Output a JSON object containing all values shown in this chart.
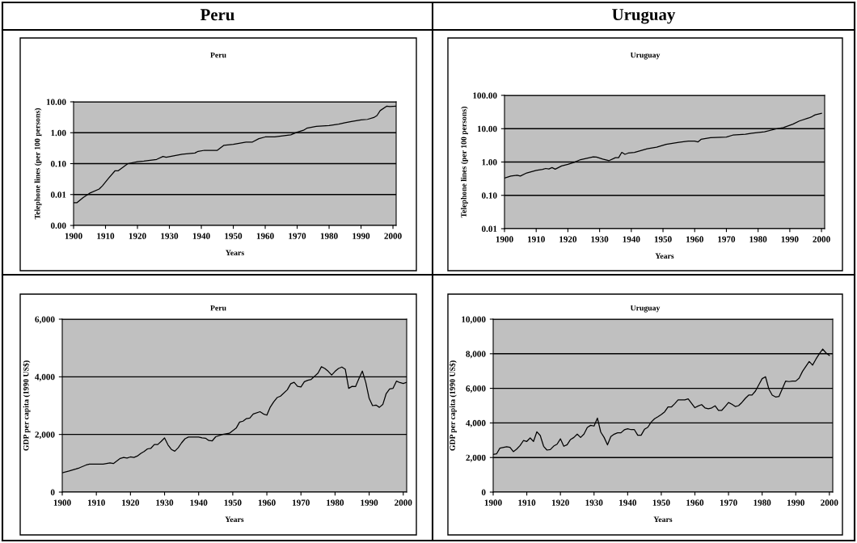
{
  "chart_data": [
    {
      "type": "line",
      "title": "Peru",
      "xlabel": "Years",
      "ylabel": "Telephone lines (per 100 persons)",
      "annotations": [
        "Peru"
      ],
      "log": true,
      "grid": "y",
      "legend": false,
      "xlim": [
        1900,
        2001
      ],
      "xticks": [
        1900,
        1910,
        1920,
        1930,
        1940,
        1950,
        1960,
        1970,
        1980,
        1990,
        2000
      ],
      "ylim": [
        0.001,
        10
      ],
      "yticks": [
        {
          "value": 0.001,
          "label": "0.00"
        },
        {
          "value": 0.01,
          "label": "0.01"
        },
        {
          "value": 0.1,
          "label": "0.10"
        },
        {
          "value": 1,
          "label": "1.00"
        },
        {
          "value": 10,
          "label": "10.00"
        }
      ],
      "x": [
        1900,
        1901,
        1903,
        1905,
        1908,
        1909,
        1911,
        1913,
        1914,
        1917,
        1920,
        1922,
        1926,
        1928,
        1929,
        1934,
        1938,
        1939,
        1941,
        1945,
        1947,
        1950,
        1954,
        1956,
        1958,
        1960,
        1963,
        1965,
        1968,
        1970,
        1972,
        1973,
        1976,
        1980,
        1983,
        1985,
        1987,
        1990,
        1992,
        1994,
        1995,
        1996,
        1998,
        1999,
        2001
      ],
      "series": [
        {
          "color": "#000000",
          "values": [
            0.0054,
            0.0054,
            0.008,
            0.011,
            0.015,
            0.019,
            0.034,
            0.059,
            0.059,
            0.1,
            0.115,
            0.12,
            0.137,
            0.17,
            0.16,
            0.2,
            0.22,
            0.25,
            0.27,
            0.27,
            0.39,
            0.42,
            0.5,
            0.5,
            0.64,
            0.73,
            0.73,
            0.78,
            0.85,
            1.04,
            1.2,
            1.4,
            1.6,
            1.7,
            1.9,
            2.1,
            2.3,
            2.6,
            2.7,
            3.1,
            3.6,
            5.2,
            7.2,
            7.0,
            7.2
          ]
        }
      ]
    },
    {
      "type": "line",
      "title": "Uruguay",
      "xlabel": "Years",
      "ylabel": "Telephone lines (per 100 persons)",
      "annotations": [
        "Uruguay"
      ],
      "log": true,
      "grid": "y",
      "legend": false,
      "xlim": [
        1900,
        2001
      ],
      "xticks": [
        1900,
        1910,
        1920,
        1930,
        1940,
        1950,
        1960,
        1970,
        1980,
        1990,
        2000
      ],
      "ylim": [
        0.01,
        100
      ],
      "yticks": [
        {
          "value": 0.01,
          "label": "0.01"
        },
        {
          "value": 0.1,
          "label": "0.10"
        },
        {
          "value": 1,
          "label": "1.00"
        },
        {
          "value": 10,
          "label": "10.00"
        },
        {
          "value": 100,
          "label": "100.00"
        }
      ],
      "x": [
        1900,
        1902,
        1904,
        1905,
        1907,
        1910,
        1912,
        1913,
        1914,
        1915,
        1916,
        1918,
        1920,
        1922,
        1924,
        1928,
        1929,
        1931,
        1933,
        1935,
        1936,
        1937,
        1938,
        1939,
        1941,
        1943,
        1945,
        1948,
        1951,
        1955,
        1958,
        1960,
        1961,
        1962,
        1965,
        1970,
        1972,
        1976,
        1978,
        1982,
        1986,
        1988,
        1991,
        1993,
        1996,
        1997,
        1998,
        2000
      ],
      "series": [
        {
          "color": "#000000",
          "values": [
            0.33,
            0.38,
            0.4,
            0.38,
            0.47,
            0.56,
            0.6,
            0.64,
            0.62,
            0.68,
            0.61,
            0.76,
            0.85,
            0.98,
            1.18,
            1.42,
            1.4,
            1.23,
            1.1,
            1.35,
            1.35,
            1.95,
            1.7,
            1.85,
            1.95,
            2.2,
            2.5,
            2.8,
            3.4,
            3.9,
            4.25,
            4.25,
            4.0,
            4.8,
            5.4,
            5.6,
            6.4,
            6.8,
            7.3,
            8.1,
            10,
            10.8,
            13.7,
            17,
            21,
            23,
            26,
            28.8
          ]
        }
      ]
    },
    {
      "type": "line",
      "title": "Peru",
      "xlabel": "Years",
      "ylabel": "GDP per capita (1990 US$)",
      "grid": "y",
      "legend": false,
      "xlim": [
        1900,
        2001
      ],
      "xticks": [
        1900,
        1910,
        1920,
        1930,
        1940,
        1950,
        1960,
        1970,
        1980,
        1990,
        2000
      ],
      "ylim": [
        0,
        6000
      ],
      "yticks": [
        {
          "value": 0,
          "label": "0"
        },
        {
          "value": 2000,
          "label": "2,000"
        },
        {
          "value": 4000,
          "label": "4,000"
        },
        {
          "value": 6000,
          "label": "6,000"
        }
      ],
      "x": [
        1900,
        1902,
        1904,
        1905,
        1907,
        1908,
        1912,
        1914,
        1915,
        1917,
        1918,
        1919,
        1920,
        1921,
        1922,
        1923,
        1924,
        1925,
        1926,
        1927,
        1928,
        1929,
        1930,
        1931,
        1932,
        1933,
        1934,
        1935,
        1936,
        1937,
        1940,
        1941,
        1942,
        1943,
        1944,
        1945,
        1947,
        1949,
        1951,
        1952,
        1953,
        1954,
        1955,
        1956,
        1958,
        1959,
        1960,
        1961,
        1962,
        1963,
        1964,
        1966,
        1967,
        1968,
        1969,
        1970,
        1971,
        1972,
        1973,
        1974,
        1975,
        1976,
        1977,
        1978,
        1979,
        1980,
        1981,
        1982,
        1983,
        1984,
        1985,
        1986,
        1987,
        1988,
        1989,
        1990,
        1991,
        1992,
        1993,
        1994,
        1995,
        1996,
        1997,
        1998,
        1999,
        2000,
        2001
      ],
      "series": [
        {
          "color": "#000000",
          "values": [
            670,
            730,
            800,
            840,
            940,
            970,
            970,
            1010,
            990,
            1170,
            1200,
            1180,
            1220,
            1200,
            1250,
            1340,
            1410,
            1500,
            1520,
            1650,
            1650,
            1760,
            1880,
            1640,
            1480,
            1420,
            1540,
            1710,
            1850,
            1910,
            1910,
            1880,
            1870,
            1790,
            1780,
            1920,
            2000,
            2040,
            2220,
            2430,
            2460,
            2550,
            2570,
            2710,
            2790,
            2710,
            2670,
            2950,
            3130,
            3280,
            3330,
            3550,
            3760,
            3810,
            3670,
            3650,
            3830,
            3880,
            3910,
            4020,
            4130,
            4350,
            4290,
            4190,
            4060,
            4190,
            4290,
            4340,
            4260,
            3600,
            3670,
            3660,
            3940,
            4200,
            3810,
            3250,
            3000,
            3020,
            2940,
            3040,
            3420,
            3580,
            3600,
            3850,
            3800,
            3770,
            3810
          ]
        }
      ]
    },
    {
      "type": "line",
      "title": "Uruguay",
      "xlabel": "Years",
      "ylabel": "GDP per capita (1990 US$)",
      "grid": "y",
      "legend": false,
      "xlim": [
        1900,
        2001
      ],
      "xticks": [
        1900,
        1910,
        1920,
        1930,
        1940,
        1950,
        1960,
        1970,
        1980,
        1990,
        2000
      ],
      "ylim": [
        0,
        10000
      ],
      "yticks": [
        {
          "value": 0,
          "label": "0"
        },
        {
          "value": 2000,
          "label": "2,000"
        },
        {
          "value": 4000,
          "label": "4,000"
        },
        {
          "value": 6000,
          "label": "6,000"
        },
        {
          "value": 8000,
          "label": "8,000"
        },
        {
          "value": 10000,
          "label": "10,000"
        }
      ],
      "x": [
        1900,
        1901,
        1902,
        1904,
        1905,
        1906,
        1907,
        1908,
        1909,
        1910,
        1911,
        1912,
        1913,
        1914,
        1915,
        1916,
        1917,
        1918,
        1919,
        1920,
        1921,
        1922,
        1923,
        1924,
        1925,
        1926,
        1927,
        1928,
        1929,
        1930,
        1931,
        1932,
        1933,
        1934,
        1935,
        1936,
        1937,
        1938,
        1939,
        1940,
        1941,
        1942,
        1943,
        1944,
        1945,
        1946,
        1947,
        1948,
        1949,
        1950,
        1951,
        1952,
        1953,
        1954,
        1955,
        1956,
        1957,
        1958,
        1960,
        1961,
        1962,
        1963,
        1964,
        1965,
        1966,
        1967,
        1968,
        1969,
        1970,
        1971,
        1972,
        1973,
        1974,
        1975,
        1976,
        1977,
        1978,
        1979,
        1980,
        1981,
        1982,
        1983,
        1984,
        1985,
        1987,
        1988,
        1989,
        1990,
        1991,
        1992,
        1994,
        1995,
        1996,
        1997,
        1998,
        1999,
        2000
      ],
      "series": [
        {
          "color": "#000000",
          "values": [
            2180,
            2210,
            2540,
            2620,
            2590,
            2340,
            2490,
            2690,
            2980,
            2930,
            3130,
            2930,
            3490,
            3270,
            2650,
            2430,
            2460,
            2660,
            2770,
            3080,
            2650,
            2740,
            3040,
            3160,
            3350,
            3160,
            3350,
            3740,
            3860,
            3820,
            4280,
            3470,
            3160,
            2730,
            3210,
            3350,
            3430,
            3430,
            3600,
            3660,
            3610,
            3610,
            3290,
            3290,
            3630,
            3750,
            4050,
            4240,
            4360,
            4490,
            4640,
            4920,
            4920,
            5110,
            5330,
            5330,
            5330,
            5390,
            4880,
            4980,
            5060,
            4870,
            4820,
            4870,
            4990,
            4730,
            4730,
            4950,
            5180,
            5080,
            4950,
            5000,
            5190,
            5420,
            5610,
            5610,
            5840,
            6200,
            6560,
            6670,
            5960,
            5610,
            5500,
            5530,
            6420,
            6390,
            6420,
            6420,
            6590,
            6980,
            7550,
            7340,
            7690,
            8000,
            8270,
            8050,
            7900
          ]
        }
      ]
    }
  ]
}
